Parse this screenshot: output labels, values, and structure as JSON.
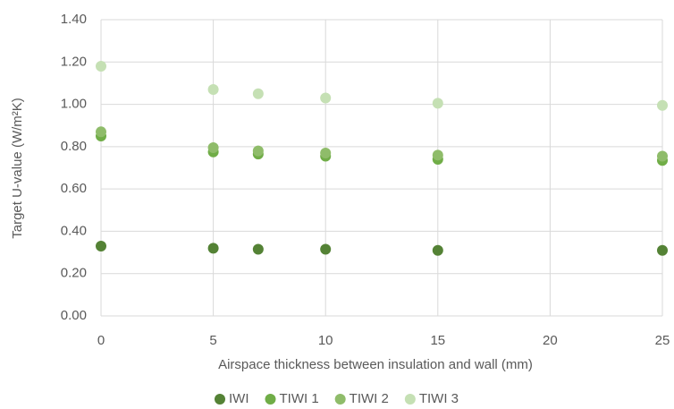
{
  "chart_data": {
    "type": "scatter",
    "x_label": "Airspace thickness between insulation and wall (mm)",
    "y_label": "Target U-value (W/m²K)",
    "x": [
      0,
      5,
      7,
      10,
      15,
      25
    ],
    "series": [
      {
        "name": "IWI",
        "color": "#548235",
        "values": [
          0.33,
          0.32,
          0.315,
          0.315,
          0.31,
          0.31
        ]
      },
      {
        "name": "TIWI 1",
        "color": "#70ad47",
        "values": [
          0.85,
          0.775,
          0.765,
          0.755,
          0.74,
          0.735
        ]
      },
      {
        "name": "TIWI 2",
        "color": "#8fbc6a",
        "values": [
          0.87,
          0.795,
          0.78,
          0.77,
          0.76,
          0.755
        ]
      },
      {
        "name": "TIWI 3",
        "color": "#c5e0b4",
        "values": [
          1.18,
          1.07,
          1.05,
          1.03,
          1.005,
          0.995
        ]
      }
    ],
    "xlim": [
      0,
      25
    ],
    "xticks": [
      0,
      5,
      10,
      15,
      20,
      25
    ],
    "ylim": [
      0,
      1.4
    ],
    "yticks": [
      {
        "value": 0,
        "label": "0.00"
      },
      {
        "value": 0.2,
        "label": "0.20"
      },
      {
        "value": 0.4,
        "label": "0.40"
      },
      {
        "value": 0.6,
        "label": "0.60"
      },
      {
        "value": 0.8,
        "label": "0.80"
      },
      {
        "value": 1.0,
        "label": "1.00"
      },
      {
        "value": 1.2,
        "label": "1.20"
      },
      {
        "value": 1.4,
        "label": "1.40"
      }
    ],
    "grid": true,
    "legend": "bottom"
  }
}
